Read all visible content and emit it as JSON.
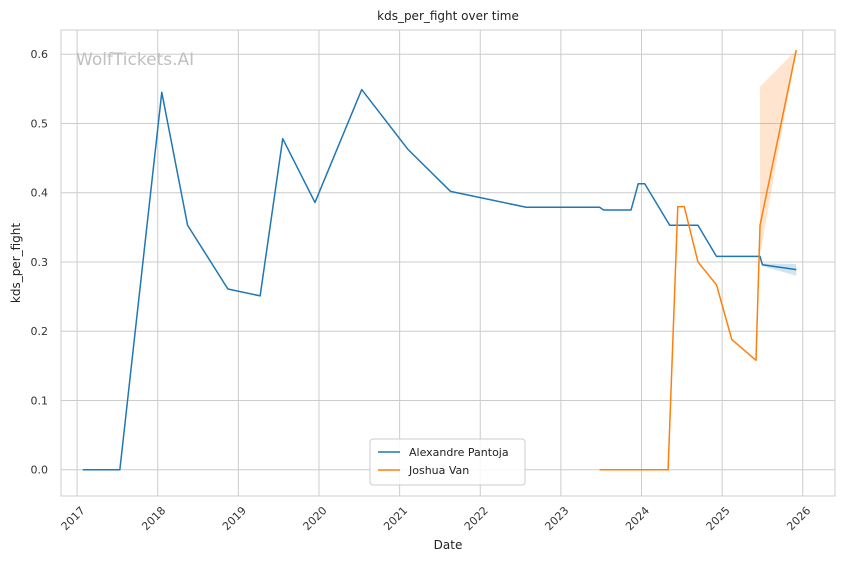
{
  "chart_data": {
    "type": "line",
    "title": "kds_per_fight over time",
    "xlabel": "Date",
    "ylabel": "kds_per_fight",
    "watermark": "WolfTickets.AI",
    "xlim": [
      2016.8,
      2026.4
    ],
    "ylim": [
      -0.038,
      0.635
    ],
    "x_ticks": [
      2017,
      2018,
      2019,
      2020,
      2021,
      2022,
      2023,
      2024,
      2025,
      2026
    ],
    "x_tick_labels": [
      "2017",
      "2018",
      "2019",
      "2020",
      "2021",
      "2022",
      "2023",
      "2024",
      "2025",
      "2026"
    ],
    "y_ticks": [
      0.0,
      0.1,
      0.2,
      0.3,
      0.4,
      0.5,
      0.6
    ],
    "y_tick_labels": [
      "0.0",
      "0.1",
      "0.2",
      "0.3",
      "0.4",
      "0.5",
      "0.6"
    ],
    "grid": true,
    "legend_position": "bottom-center",
    "series": [
      {
        "name": "Alexandre Pantoja",
        "color": "#1f77b4",
        "x": [
          2017.07,
          2017.53,
          2018.05,
          2018.37,
          2018.87,
          2019.27,
          2019.55,
          2019.95,
          2020.53,
          2021.1,
          2021.63,
          2022.57,
          2023.48,
          2023.53,
          2023.87,
          2023.96,
          2024.04,
          2024.35,
          2024.7,
          2024.93,
          2025.47,
          2025.5,
          2025.92
        ],
        "y": [
          0.0,
          0.0,
          0.545,
          0.353,
          0.261,
          0.251,
          0.478,
          0.386,
          0.549,
          0.463,
          0.402,
          0.379,
          0.379,
          0.375,
          0.375,
          0.413,
          0.413,
          0.353,
          0.353,
          0.308,
          0.308,
          0.296,
          0.289
        ],
        "band": {
          "x": [
            2025.5,
            2025.92
          ],
          "lower": [
            0.294,
            0.28
          ],
          "upper": [
            0.298,
            0.297
          ]
        }
      },
      {
        "name": "Joshua Van",
        "color": "#ff7f0e",
        "x": [
          2023.48,
          2024.33,
          2024.45,
          2024.53,
          2024.7,
          2024.93,
          2025.12,
          2025.42,
          2025.47,
          2025.92
        ],
        "y": [
          0.0,
          0.0,
          0.38,
          0.38,
          0.3,
          0.267,
          0.188,
          0.158,
          0.353,
          0.606
        ],
        "band": {
          "x": [
            2025.47,
            2025.92
          ],
          "lower": [
            0.31,
            0.606
          ],
          "upper": [
            0.553,
            0.606
          ]
        }
      }
    ]
  }
}
